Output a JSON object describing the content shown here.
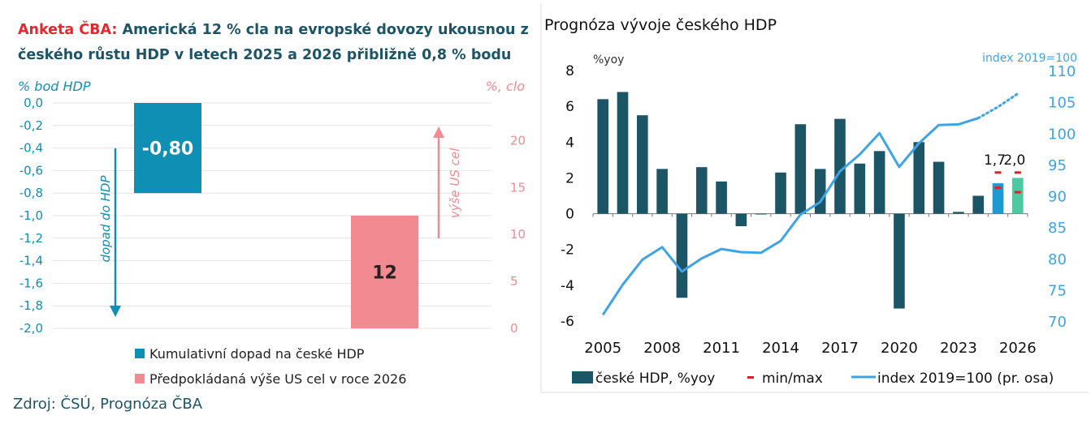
{
  "left_panel": {
    "title_highlight": "Anketa ČBA:",
    "title_rest": " Americká 12 % cla na evropské dovozy ukousnou z českého růstu HDP v letech 2025 a 2026 přibližně 0,8 % bodu",
    "source": "Zdroj: ČSÚ, Prognóza ČBA"
  },
  "right_panel": {
    "title": "Prognóza vývoje českého HDP"
  },
  "colors": {
    "teal": "#0f8fb3",
    "pink": "#f28a92",
    "dark_teal": "#1b5566",
    "light_blue": "#3ea4e6",
    "highlight_blue": "#1e9ad3",
    "green": "#4cc9a0",
    "red": "#e02020",
    "dark_text": "#1d5566"
  },
  "chart_data": [
    {
      "type": "bar",
      "left_axis_label": "% bod HDP",
      "right_axis_label": "%, clo",
      "left_ticks": [
        "0,0",
        "-0,2",
        "-0,4",
        "-0,6",
        "-0,8",
        "-1,0",
        "-1,2",
        "-1,4",
        "-1,6",
        "-1,8",
        "-2,0"
      ],
      "right_ticks": [
        "20",
        "15",
        "10",
        "5",
        "0"
      ],
      "ylim_left": [
        -2.0,
        0.0
      ],
      "ylim_right": [
        0,
        24
      ],
      "series": [
        {
          "name": "Kumulativní dopad na české HDP",
          "value": -0.8,
          "label": "-0,80",
          "axis": "left"
        },
        {
          "name": "Předpokládaná výše US cel v roce 2026",
          "value": 12,
          "label": "12",
          "axis": "right"
        }
      ],
      "annotations": [
        "dopad do HDP",
        "výše US cel"
      ],
      "legend_position": "bottom"
    },
    {
      "type": "bar",
      "left_axis_label": "%yoy",
      "right_axis_label": "index 2019=100",
      "ylim_left": [
        -6,
        8
      ],
      "ylim_right": [
        70,
        110
      ],
      "left_ticks": [
        "8",
        "6",
        "4",
        "2",
        "0",
        "-2",
        "-4",
        "-6"
      ],
      "right_ticks": [
        "110",
        "105",
        "100",
        "95",
        "90",
        "85",
        "80",
        "75",
        "70"
      ],
      "x_tick_labels": [
        "2005",
        "2008",
        "2011",
        "2014",
        "2017",
        "2020",
        "2023",
        "2026"
      ],
      "years": [
        2005,
        2006,
        2007,
        2008,
        2009,
        2010,
        2011,
        2012,
        2013,
        2014,
        2015,
        2016,
        2017,
        2018,
        2019,
        2020,
        2021,
        2022,
        2023,
        2024,
        2025,
        2026
      ],
      "gdp_yoy": [
        6.4,
        6.8,
        5.5,
        2.5,
        -4.7,
        2.6,
        1.8,
        -0.7,
        0.0,
        2.3,
        5.0,
        2.5,
        5.3,
        2.8,
        3.5,
        -5.3,
        4.0,
        2.9,
        0.1,
        1.0,
        1.7,
        2.0
      ],
      "index_2019": [
        71.0,
        75.8,
        79.8,
        81.8,
        77.9,
        80.0,
        81.5,
        81.0,
        80.9,
        82.8,
        87.0,
        89.0,
        93.9,
        96.6,
        100.0,
        94.6,
        98.4,
        101.3,
        101.4,
        102.4,
        104.2,
        106.3
      ],
      "minmax": [
        {
          "year": 2025,
          "min": 1.45,
          "max": 2.3
        },
        {
          "year": 2026,
          "min": 1.2,
          "max": 2.3
        }
      ],
      "value_labels": [
        {
          "year": 2025,
          "label": "1,7"
        },
        {
          "year": 2026,
          "label": "2,0"
        }
      ],
      "legend": [
        "české HDP, %yoy",
        "min/max",
        "index 2019=100 (pr. osa)"
      ],
      "legend_position": "bottom"
    }
  ]
}
